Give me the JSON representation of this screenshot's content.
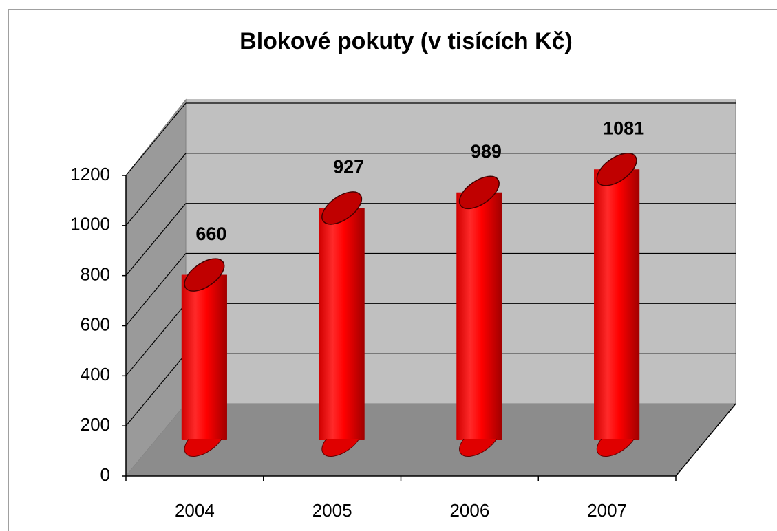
{
  "chart_data": {
    "type": "bar",
    "title": "Blokové pokuty (v tisících Kč)",
    "categories": [
      "2004",
      "2005",
      "2006",
      "2007"
    ],
    "values": [
      660,
      927,
      989,
      1081
    ],
    "color": "#ff0000",
    "ylim": [
      0,
      1200
    ],
    "yticks": [
      0,
      200,
      400,
      600,
      800,
      1000,
      1200
    ],
    "grid": true
  }
}
